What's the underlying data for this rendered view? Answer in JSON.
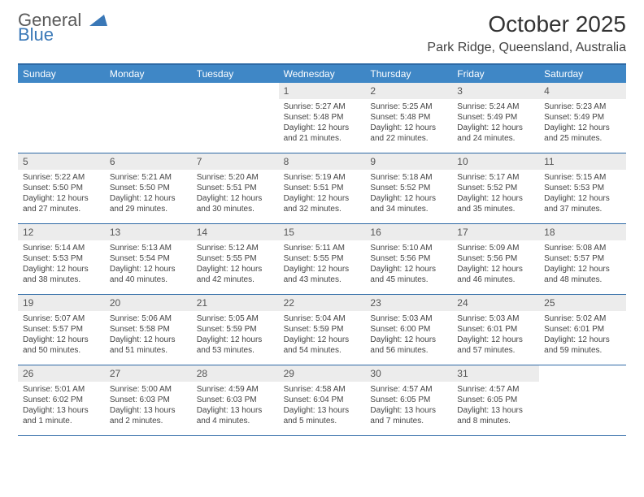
{
  "logo": {
    "line1": "General",
    "line2": "Blue"
  },
  "title": "October 2025",
  "subtitle": "Park Ridge, Queensland, Australia",
  "colors": {
    "header_bg": "#3f87c6",
    "border": "#2e6aa6",
    "daynum_bg": "#ececec",
    "logo_gray": "#5a5a5a",
    "logo_blue": "#3a78b7"
  },
  "dayHeaders": [
    "Sunday",
    "Monday",
    "Tuesday",
    "Wednesday",
    "Thursday",
    "Friday",
    "Saturday"
  ],
  "weeks": [
    [
      {
        "empty": true
      },
      {
        "empty": true
      },
      {
        "empty": true
      },
      {
        "day": "1",
        "sunrise": "Sunrise: 5:27 AM",
        "sunset": "Sunset: 5:48 PM",
        "daylight": "Daylight: 12 hours and 21 minutes."
      },
      {
        "day": "2",
        "sunrise": "Sunrise: 5:25 AM",
        "sunset": "Sunset: 5:48 PM",
        "daylight": "Daylight: 12 hours and 22 minutes."
      },
      {
        "day": "3",
        "sunrise": "Sunrise: 5:24 AM",
        "sunset": "Sunset: 5:49 PM",
        "daylight": "Daylight: 12 hours and 24 minutes."
      },
      {
        "day": "4",
        "sunrise": "Sunrise: 5:23 AM",
        "sunset": "Sunset: 5:49 PM",
        "daylight": "Daylight: 12 hours and 25 minutes."
      }
    ],
    [
      {
        "day": "5",
        "sunrise": "Sunrise: 5:22 AM",
        "sunset": "Sunset: 5:50 PM",
        "daylight": "Daylight: 12 hours and 27 minutes."
      },
      {
        "day": "6",
        "sunrise": "Sunrise: 5:21 AM",
        "sunset": "Sunset: 5:50 PM",
        "daylight": "Daylight: 12 hours and 29 minutes."
      },
      {
        "day": "7",
        "sunrise": "Sunrise: 5:20 AM",
        "sunset": "Sunset: 5:51 PM",
        "daylight": "Daylight: 12 hours and 30 minutes."
      },
      {
        "day": "8",
        "sunrise": "Sunrise: 5:19 AM",
        "sunset": "Sunset: 5:51 PM",
        "daylight": "Daylight: 12 hours and 32 minutes."
      },
      {
        "day": "9",
        "sunrise": "Sunrise: 5:18 AM",
        "sunset": "Sunset: 5:52 PM",
        "daylight": "Daylight: 12 hours and 34 minutes."
      },
      {
        "day": "10",
        "sunrise": "Sunrise: 5:17 AM",
        "sunset": "Sunset: 5:52 PM",
        "daylight": "Daylight: 12 hours and 35 minutes."
      },
      {
        "day": "11",
        "sunrise": "Sunrise: 5:15 AM",
        "sunset": "Sunset: 5:53 PM",
        "daylight": "Daylight: 12 hours and 37 minutes."
      }
    ],
    [
      {
        "day": "12",
        "sunrise": "Sunrise: 5:14 AM",
        "sunset": "Sunset: 5:53 PM",
        "daylight": "Daylight: 12 hours and 38 minutes."
      },
      {
        "day": "13",
        "sunrise": "Sunrise: 5:13 AM",
        "sunset": "Sunset: 5:54 PM",
        "daylight": "Daylight: 12 hours and 40 minutes."
      },
      {
        "day": "14",
        "sunrise": "Sunrise: 5:12 AM",
        "sunset": "Sunset: 5:55 PM",
        "daylight": "Daylight: 12 hours and 42 minutes."
      },
      {
        "day": "15",
        "sunrise": "Sunrise: 5:11 AM",
        "sunset": "Sunset: 5:55 PM",
        "daylight": "Daylight: 12 hours and 43 minutes."
      },
      {
        "day": "16",
        "sunrise": "Sunrise: 5:10 AM",
        "sunset": "Sunset: 5:56 PM",
        "daylight": "Daylight: 12 hours and 45 minutes."
      },
      {
        "day": "17",
        "sunrise": "Sunrise: 5:09 AM",
        "sunset": "Sunset: 5:56 PM",
        "daylight": "Daylight: 12 hours and 46 minutes."
      },
      {
        "day": "18",
        "sunrise": "Sunrise: 5:08 AM",
        "sunset": "Sunset: 5:57 PM",
        "daylight": "Daylight: 12 hours and 48 minutes."
      }
    ],
    [
      {
        "day": "19",
        "sunrise": "Sunrise: 5:07 AM",
        "sunset": "Sunset: 5:57 PM",
        "daylight": "Daylight: 12 hours and 50 minutes."
      },
      {
        "day": "20",
        "sunrise": "Sunrise: 5:06 AM",
        "sunset": "Sunset: 5:58 PM",
        "daylight": "Daylight: 12 hours and 51 minutes."
      },
      {
        "day": "21",
        "sunrise": "Sunrise: 5:05 AM",
        "sunset": "Sunset: 5:59 PM",
        "daylight": "Daylight: 12 hours and 53 minutes."
      },
      {
        "day": "22",
        "sunrise": "Sunrise: 5:04 AM",
        "sunset": "Sunset: 5:59 PM",
        "daylight": "Daylight: 12 hours and 54 minutes."
      },
      {
        "day": "23",
        "sunrise": "Sunrise: 5:03 AM",
        "sunset": "Sunset: 6:00 PM",
        "daylight": "Daylight: 12 hours and 56 minutes."
      },
      {
        "day": "24",
        "sunrise": "Sunrise: 5:03 AM",
        "sunset": "Sunset: 6:01 PM",
        "daylight": "Daylight: 12 hours and 57 minutes."
      },
      {
        "day": "25",
        "sunrise": "Sunrise: 5:02 AM",
        "sunset": "Sunset: 6:01 PM",
        "daylight": "Daylight: 12 hours and 59 minutes."
      }
    ],
    [
      {
        "day": "26",
        "sunrise": "Sunrise: 5:01 AM",
        "sunset": "Sunset: 6:02 PM",
        "daylight": "Daylight: 13 hours and 1 minute."
      },
      {
        "day": "27",
        "sunrise": "Sunrise: 5:00 AM",
        "sunset": "Sunset: 6:03 PM",
        "daylight": "Daylight: 13 hours and 2 minutes."
      },
      {
        "day": "28",
        "sunrise": "Sunrise: 4:59 AM",
        "sunset": "Sunset: 6:03 PM",
        "daylight": "Daylight: 13 hours and 4 minutes."
      },
      {
        "day": "29",
        "sunrise": "Sunrise: 4:58 AM",
        "sunset": "Sunset: 6:04 PM",
        "daylight": "Daylight: 13 hours and 5 minutes."
      },
      {
        "day": "30",
        "sunrise": "Sunrise: 4:57 AM",
        "sunset": "Sunset: 6:05 PM",
        "daylight": "Daylight: 13 hours and 7 minutes."
      },
      {
        "day": "31",
        "sunrise": "Sunrise: 4:57 AM",
        "sunset": "Sunset: 6:05 PM",
        "daylight": "Daylight: 13 hours and 8 minutes."
      },
      {
        "empty": true
      }
    ]
  ]
}
